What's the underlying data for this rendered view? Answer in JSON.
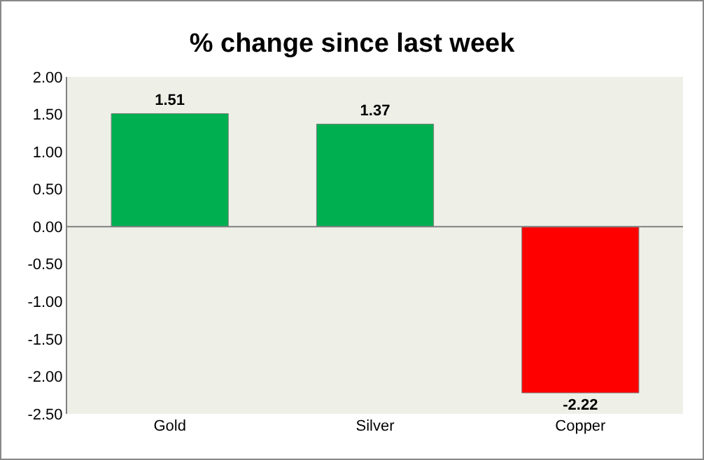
{
  "chart_data": {
    "type": "bar",
    "title": "% change since last week",
    "categories": [
      "Gold",
      "Silver",
      "Copper"
    ],
    "values": [
      1.51,
      1.37,
      -2.22
    ],
    "colors": [
      "#00b050",
      "#00b050",
      "#ff0000"
    ],
    "ylim": [
      -2.5,
      2.0
    ],
    "yticks": [
      {
        "value": -2.5,
        "label": "-2.50"
      },
      {
        "value": -2.0,
        "label": "-2.00"
      },
      {
        "value": -1.5,
        "label": "-1.50"
      },
      {
        "value": -1.0,
        "label": "-1.00"
      },
      {
        "value": -0.5,
        "label": "-0.50"
      },
      {
        "value": 0,
        "label": "0.00"
      },
      {
        "value": 0.5,
        "label": "0.50"
      },
      {
        "value": 1.0,
        "label": "1.00"
      },
      {
        "value": 1.5,
        "label": "1.50"
      },
      {
        "value": 2.0,
        "label": "2.00"
      }
    ],
    "ref_lines": [
      {
        "axis": "y",
        "value": 0,
        "color": "#808080"
      }
    ],
    "data_labels": true
  }
}
